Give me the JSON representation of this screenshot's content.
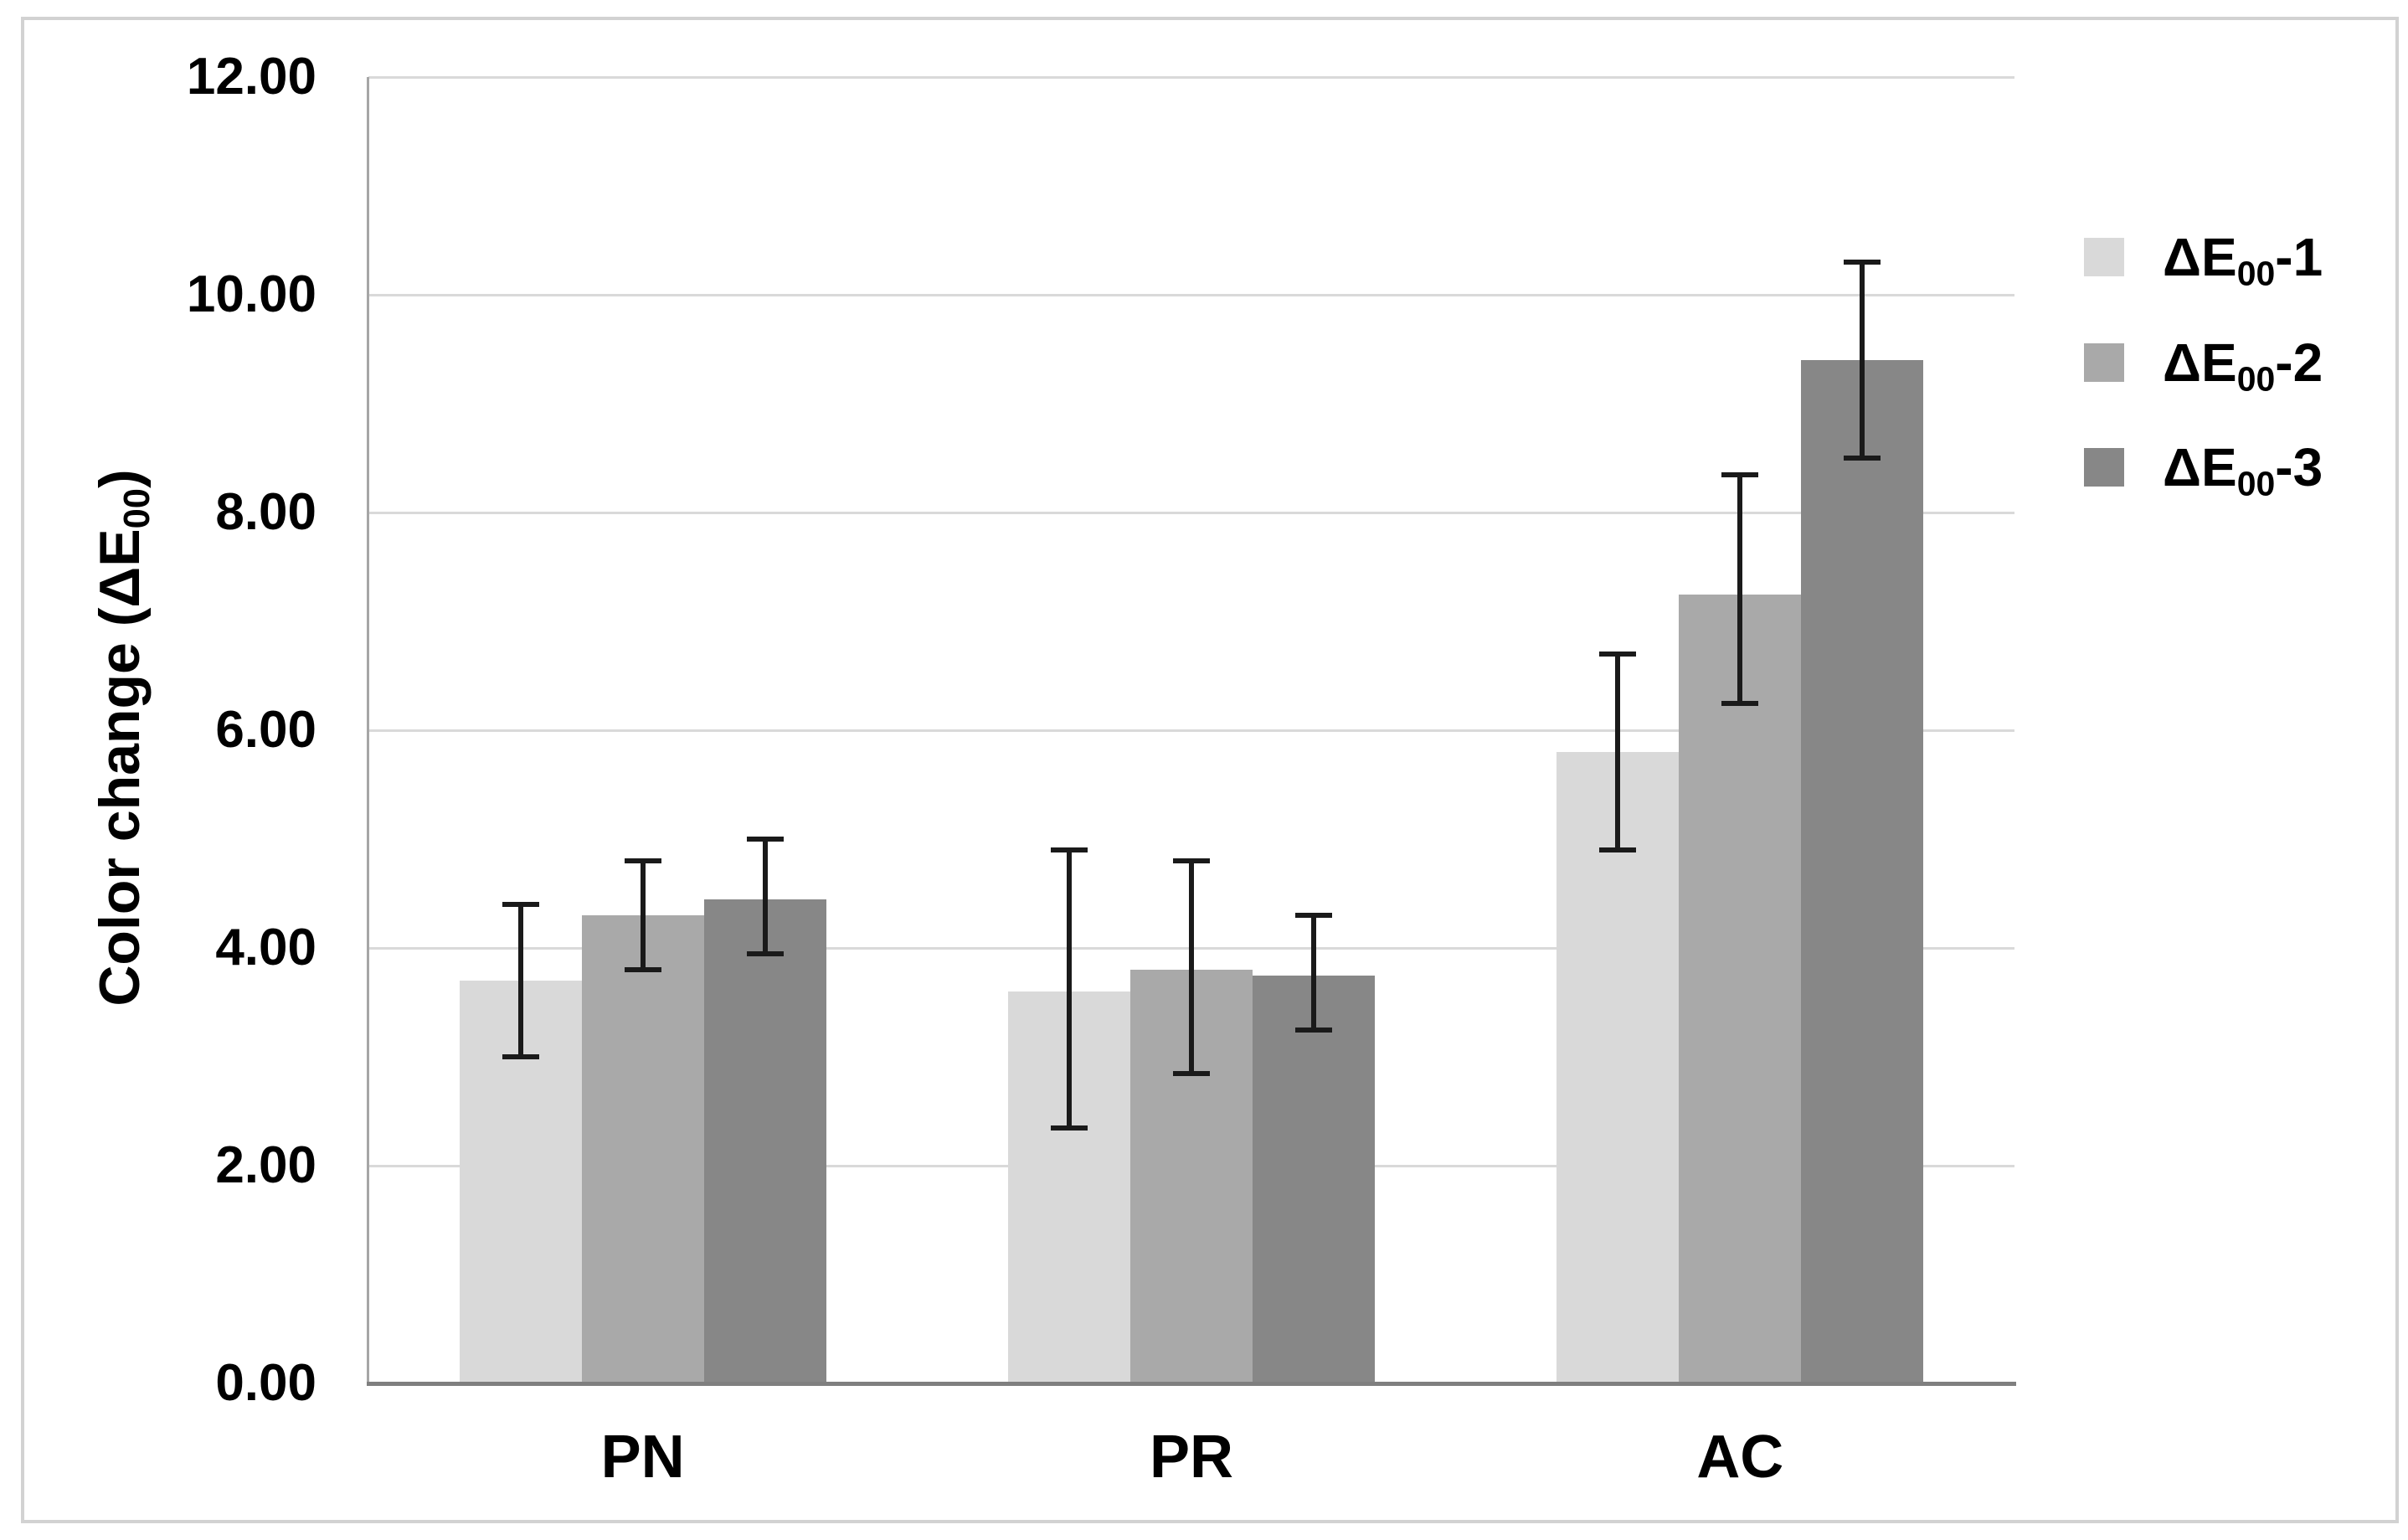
{
  "figure": {
    "background": "#ffffff",
    "border_color": "#d2d2d2"
  },
  "y_axis": {
    "title_prefix": "Color change (ΔE",
    "title_sub": "00",
    "title_suffix": ")",
    "tick_labels": [
      "0.00",
      "2.00",
      "4.00",
      "6.00",
      "8.00",
      "10.00",
      "12.00"
    ],
    "min": 0,
    "max": 12,
    "step": 2
  },
  "x_axis": {
    "categories": [
      "PN",
      "PR",
      "AC"
    ]
  },
  "legend": {
    "entries": [
      {
        "prefix": "ΔE",
        "sub": "00",
        "suffix": "-1",
        "color": "#d9d9d9"
      },
      {
        "prefix": "ΔE",
        "sub": "00",
        "suffix": "-2",
        "color": "#a9a9a9"
      },
      {
        "prefix": "ΔE",
        "sub": "00",
        "suffix": "-3",
        "color": "#878787"
      }
    ]
  },
  "chart_data": {
    "type": "bar",
    "title": "",
    "categories": [
      "PN",
      "PR",
      "AC"
    ],
    "series": [
      {
        "name": "ΔE00-1",
        "color": "#d9d9d9",
        "values": [
          3.7,
          3.6,
          5.8
        ],
        "error_low": [
          3.0,
          2.35,
          4.9
        ],
        "error_high": [
          4.4,
          4.9,
          6.7
        ]
      },
      {
        "name": "ΔE00-2",
        "color": "#a9a9a9",
        "values": [
          4.3,
          3.8,
          7.25
        ],
        "error_low": [
          3.8,
          2.85,
          6.25
        ],
        "error_high": [
          4.8,
          4.8,
          8.35
        ]
      },
      {
        "name": "ΔE00-3",
        "color": "#878787",
        "values": [
          4.45,
          3.75,
          9.4
        ],
        "error_low": [
          3.95,
          3.25,
          8.5
        ],
        "error_high": [
          5.0,
          4.3,
          10.3
        ]
      }
    ],
    "xlabel": "",
    "ylabel": "Color change (ΔE00)",
    "ylim": [
      0,
      12
    ],
    "grid": true,
    "legend_position": "right"
  }
}
